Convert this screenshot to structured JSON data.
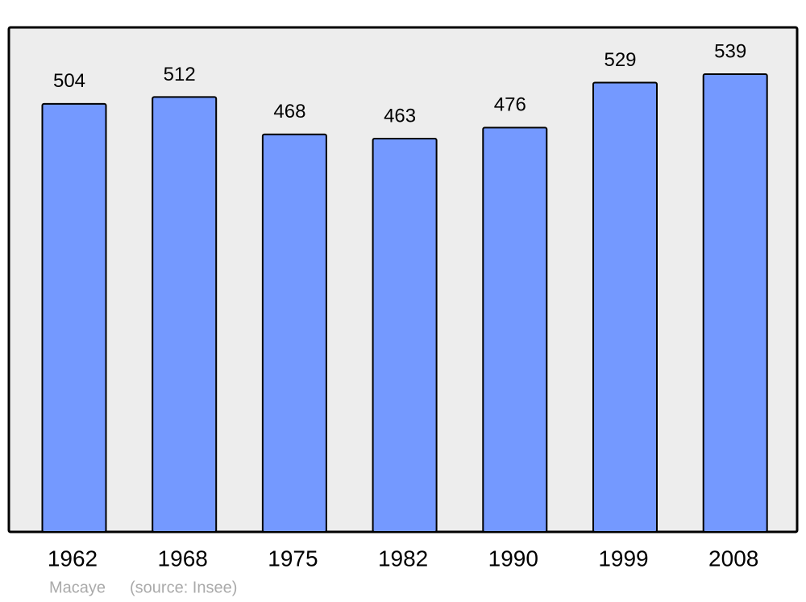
{
  "chart_data": {
    "type": "bar",
    "caption": "Macaye",
    "source": "(source: Insee)",
    "categories": [
      "1962",
      "1968",
      "1975",
      "1982",
      "1990",
      "1999",
      "2008"
    ],
    "values": [
      504,
      512,
      468,
      463,
      476,
      529,
      539
    ],
    "color": "#7499ff",
    "background": "#ededed",
    "ylim": [
      0,
      594
    ]
  }
}
